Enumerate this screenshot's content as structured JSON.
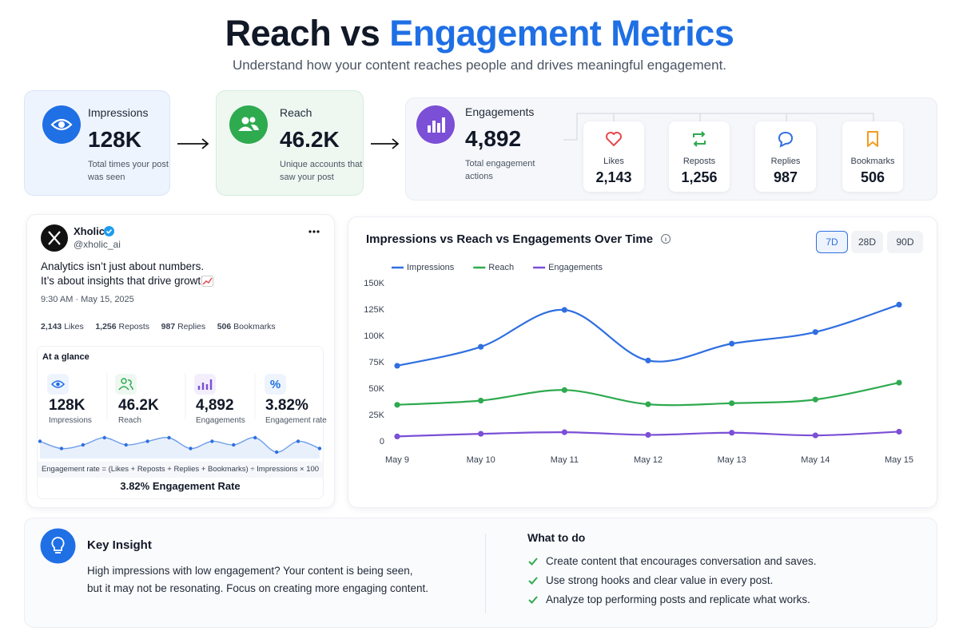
{
  "header": {
    "title_part1": "Reach vs",
    "title_part2": "Engagement Metrics",
    "subtitle": "Understand how your content reaches people and drives meaningful engagement."
  },
  "metrics": [
    {
      "label": "Impressions",
      "value": "128K",
      "description": "Total times your post was seen"
    },
    {
      "label": "Reach",
      "value": "46.2K",
      "description": "Unique accounts that saw your post"
    },
    {
      "label": "Engagements",
      "value": "4,892",
      "description": "Total engagement actions"
    }
  ],
  "engagement_breakdown": [
    {
      "label": "Likes",
      "value": "2,143"
    },
    {
      "label": "Reposts",
      "value": "1,256"
    },
    {
      "label": "Replies",
      "value": "987"
    },
    {
      "label": "Bookmarks",
      "value": "506"
    }
  ],
  "post": {
    "name": "Xholic",
    "handle": "@xholic_ai",
    "text_lines": [
      "Analytics isn’t just about numbers.",
      "It’s about insights that drive growth."
    ],
    "time": "9:30 AM · May 15, 2025",
    "stats": [
      {
        "value": "2,143",
        "label": "Likes"
      },
      {
        "value": "1,256",
        "label": "Reposts"
      },
      {
        "value": "987",
        "label": "Replies"
      },
      {
        "value": "506",
        "label": "Bookmarks"
      }
    ]
  },
  "glance": {
    "title": "At a glance",
    "items": [
      {
        "value": "128K",
        "label": "Impressions"
      },
      {
        "value": "46.2K",
        "label": "Reach"
      },
      {
        "value": "4,892",
        "label": "Engagements"
      },
      {
        "value": "3.82%",
        "label": "Engagement rate"
      }
    ],
    "sparkline": [
      5,
      3,
      4,
      6,
      4,
      5,
      6,
      3,
      5,
      4,
      6,
      2,
      5,
      3
    ],
    "formula": "Engagement rate = (Likes + Reposts + Replies + Bookmarks) ÷ Impressions × 100",
    "result": "3.82% Engagement Rate"
  },
  "chart_data": {
    "type": "line",
    "title": "Impressions vs Reach vs Engagements Over Time",
    "categories": [
      "May 9",
      "May 10",
      "May 11",
      "May 12",
      "May 13",
      "May 14",
      "May 15"
    ],
    "series": [
      {
        "name": "Impressions",
        "color": "#2f6fe0",
        "values": [
          72000,
          90000,
          125000,
          77000,
          93000,
          104000,
          130000
        ]
      },
      {
        "name": "Reach",
        "color": "#2eaa4f",
        "values": [
          35000,
          39000,
          49000,
          35500,
          36500,
          40000,
          56000
        ]
      },
      {
        "name": "Engagements",
        "color": "#7b4fd6",
        "values": [
          5000,
          7500,
          9000,
          6500,
          8500,
          6000,
          9500
        ]
      }
    ],
    "ylim": [
      0,
      150000
    ],
    "yticks": [
      0,
      {
        "value": 25000,
        "label": "25K"
      },
      {
        "value": 50000,
        "label": "50K"
      },
      {
        "value": 75000,
        "label": "75K"
      },
      {
        "value": 100000,
        "label": "100K"
      },
      {
        "value": 125000,
        "label": "125K"
      },
      {
        "value": 150000,
        "label": "150K"
      }
    ],
    "grid": false,
    "ranges": [
      "7D",
      "28D",
      "90D"
    ]
  },
  "insight": {
    "title": "Key Insight",
    "text_lines": [
      "High impressions with low engagement? Your content is being seen,",
      "but it may not be resonating. Focus on creating more engaging content."
    ],
    "actions_title": "What to do",
    "actions": [
      "Create content that encourages conversation and saves.",
      "Use strong hooks and clear value in every post.",
      "Analyze top performing posts and replicate what works."
    ]
  }
}
